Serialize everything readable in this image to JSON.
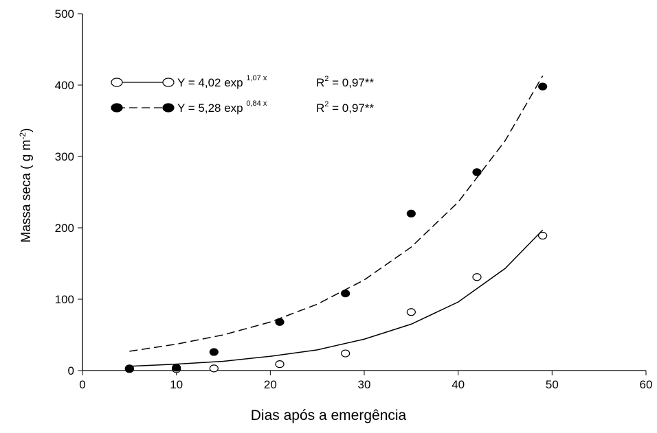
{
  "chart_data": {
    "type": "scatter",
    "x_label": "Dias após a emergência",
    "y_label": {
      "text": "Massa seca ( g  m",
      "superscript": "-2",
      "close": ")"
    },
    "xlim": [
      0,
      60
    ],
    "xticks": [
      0,
      10,
      20,
      30,
      40,
      50,
      60
    ],
    "ylim": [
      0,
      500
    ],
    "yticks": [
      0,
      100,
      200,
      300,
      400,
      500
    ],
    "series": [
      {
        "marker": "open",
        "color": "#000000",
        "x": [
          5,
          10,
          14,
          21,
          28,
          35,
          42,
          49
        ],
        "values": [
          2,
          2,
          3,
          9,
          24,
          82,
          131,
          189
        ],
        "fit": {
          "dashed": false,
          "x": [
            5,
            10,
            15,
            20,
            25,
            30,
            35,
            40,
            45,
            49
          ],
          "values": [
            6,
            9,
            13,
            20,
            29,
            44,
            65,
            96,
            143,
            197
          ]
        },
        "legend": {
          "equation": "Y = 4,02 exp ",
          "exponent": "1,07 x",
          "r": "R",
          "r_exponent": "2",
          "r_value": " = 0,97**"
        }
      },
      {
        "marker": "filled",
        "color": "#000000",
        "x": [
          5,
          10,
          14,
          21,
          28,
          35,
          42,
          49
        ],
        "values": [
          3,
          4,
          26,
          68,
          108,
          220,
          278,
          398
        ],
        "fit": {
          "dashed": true,
          "x": [
            5,
            10,
            15,
            20,
            25,
            30,
            35,
            40,
            45,
            49
          ],
          "values": [
            27,
            37,
            50,
            68,
            93,
            127,
            173,
            236,
            322,
            413
          ]
        },
        "legend": {
          "equation": "Y = 5,28 exp ",
          "exponent": "0,84 x",
          "r": "R",
          "r_exponent": "2",
          "r_value": " = 0,97**"
        }
      }
    ]
  }
}
